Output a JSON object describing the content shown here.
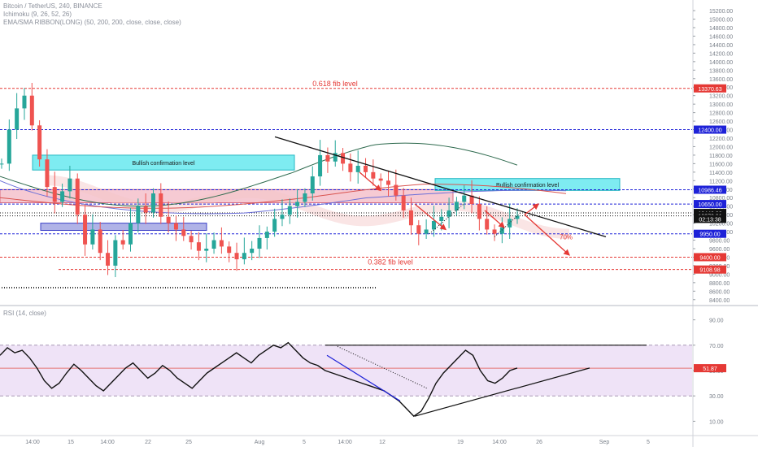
{
  "header": {
    "symbol_line": "Bitcoin / TetherUS, 240, BINANCE",
    "indicator_ichimoku": "Ichimoku (9, 26, 52, 26)",
    "indicator_ema": "EMA/SMA RIBBON(LONG) (50, 200, 200, close, close, close)",
    "rsi_title": "RSI (14, close)"
  },
  "colors": {
    "candle_up": "#26a69a",
    "candle_down": "#ef5350",
    "fib_red": "#e53935",
    "level_blue": "#1e22d8",
    "cyan_zone": "#5ee7ee",
    "pink_zone": "#f3b8c4",
    "rsi_band": "#efe3f7"
  },
  "chart_data": [
    {
      "type": "candlestick",
      "pane": "price",
      "x_tick_labels": [
        "14:00",
        "15",
        "14:00",
        "22",
        "25",
        "Aug",
        "5",
        "14:00",
        "12",
        "19",
        "14:00",
        "26",
        "Sep",
        "5"
      ],
      "y_ticks": [
        8400,
        8600,
        8800,
        9000,
        9200,
        9400,
        9600,
        9800,
        10000,
        10200,
        10400,
        10600,
        10800,
        11000,
        11200,
        11400,
        11600,
        11800,
        12000,
        12200,
        12400,
        12600,
        12800,
        13000,
        13200,
        13400,
        13600,
        13800,
        14000,
        14200,
        14400,
        14600,
        14800,
        15000,
        15200
      ],
      "y_tick_labels": [
        "8400.00",
        "8600.00",
        "8800.00",
        "9000.00",
        "9200.00",
        "9400.00",
        "9600.00",
        "9800.00",
        "10000.00",
        "10200.00",
        "10400.00",
        "10600.00",
        "10800.00",
        "11000.00",
        "11200.00",
        "11400.00",
        "11600.00",
        "11800.00",
        "12000.00",
        "12200.00",
        "12400.00",
        "12600.00",
        "12800.00",
        "13000.00",
        "13200.00",
        "13400.00",
        "13600.00",
        "13800.00",
        "14000.00",
        "14200.00",
        "14400.00",
        "14600.00",
        "14800.00",
        "15000.00",
        "15200.00"
      ],
      "ylim": [
        8300,
        15450
      ],
      "close_path": [
        11600,
        12400,
        12900,
        13200,
        12500,
        11700,
        11050,
        10700,
        10950,
        11250,
        10400,
        9700,
        10050,
        9500,
        9200,
        9800,
        9700,
        10200,
        10600,
        10450,
        10900,
        10350,
        10200,
        10050,
        9900,
        9750,
        9550,
        9600,
        9800,
        9650,
        9500,
        9350,
        9500,
        9600,
        9850,
        10000,
        10300,
        10400,
        10600,
        10700,
        10900,
        11300,
        11800,
        11650,
        11850,
        11600,
        11400,
        11550,
        11400,
        11250,
        11200,
        11100,
        10850,
        10500,
        10150,
        9950,
        10050,
        10250,
        10350,
        10500,
        10700,
        10850,
        10650,
        10300,
        10050,
        9950,
        10100,
        10300,
        10372
      ],
      "price_levels": [
        {
          "label": "13370.63",
          "value": 13370.63,
          "color": "#e53935"
        },
        {
          "label": "12400.00",
          "value": 12400,
          "color": "#1e22d8"
        },
        {
          "label": "10986.46",
          "value": 10986.46,
          "color": "#1e22d8"
        },
        {
          "label": "10650.00",
          "value": 10650,
          "color": "#1e22d8"
        },
        {
          "label": "10440.22",
          "value": 10440.22,
          "color": "#111111"
        },
        {
          "label": "10372.91",
          "value": 10372.91,
          "color": "#111111"
        },
        {
          "label": "02:13:38",
          "value": 10300,
          "color": "#111111"
        },
        {
          "label": "9950.00",
          "value": 9950,
          "color": "#1e22d8"
        },
        {
          "label": "9400.00",
          "value": 9400,
          "color": "#e53935"
        },
        {
          "label": "9108.98",
          "value": 9108.98,
          "color": "#e53935"
        }
      ],
      "annotations": {
        "fib_618": "0.618 fib level",
        "fib_382": "0.382 fib level",
        "bull_zone_1": "Bullish confirmation level",
        "bull_zone_2": "Bullish confirmation level",
        "probability": "70%"
      }
    },
    {
      "type": "line",
      "pane": "rsi",
      "name": "RSI",
      "y_tick_labels": [
        "90.00",
        "70.00",
        "50.00",
        "30.00",
        "10.00"
      ],
      "y_ticks": [
        90,
        70,
        50,
        30,
        10
      ],
      "ylim": [
        0,
        100
      ],
      "current_label": "51.87",
      "current_value": 51.87,
      "band": [
        30,
        70
      ],
      "values": [
        62,
        68,
        64,
        66,
        60,
        52,
        42,
        36,
        40,
        48,
        55,
        50,
        44,
        38,
        34,
        40,
        46,
        52,
        56,
        50,
        44,
        48,
        54,
        50,
        44,
        40,
        36,
        42,
        48,
        52,
        56,
        60,
        64,
        60,
        56,
        62,
        66,
        70,
        68,
        72,
        66,
        60,
        56,
        54,
        50,
        48,
        46,
        44,
        42,
        40,
        38,
        36,
        34,
        30,
        26,
        20,
        14,
        18,
        28,
        40,
        48,
        54,
        60,
        66,
        62,
        50,
        42,
        40,
        44,
        50,
        52
      ]
    }
  ]
}
